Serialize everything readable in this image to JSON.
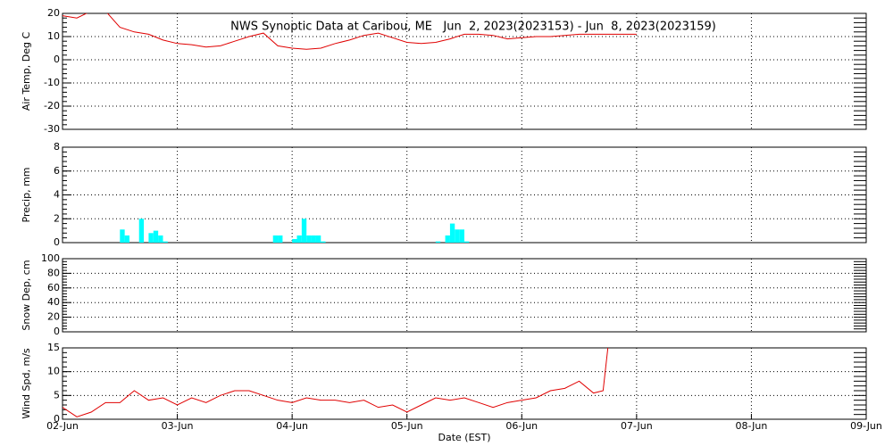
{
  "chart_data": [
    {
      "type": "line",
      "title": "NWS Synoptic Data at Caribou, ME   Jun  2, 2023(2023153) - Jun  8, 2023(2023159)",
      "ylabel": "Air Temp, Deg C",
      "xlim": [
        0,
        168
      ],
      "xticks": [
        0,
        24,
        48,
        72,
        96,
        120,
        144,
        168
      ],
      "ylim": [
        -30,
        20
      ],
      "yticks": [
        -30,
        -20,
        -10,
        0,
        10,
        20
      ],
      "grid": true,
      "series": [
        {
          "color": "#e00000",
          "x": [
            0,
            3,
            6,
            9,
            12,
            15,
            18,
            21,
            24,
            27,
            30,
            33,
            36,
            39,
            42,
            45,
            48,
            51,
            54,
            57,
            60,
            63,
            66,
            69,
            72,
            75,
            78,
            81,
            84,
            87,
            90,
            93,
            96,
            99,
            102,
            105,
            108,
            111,
            114,
            117,
            120
          ],
          "values": [
            19,
            18,
            21,
            21,
            14,
            12,
            11,
            8.5,
            7,
            6.5,
            5.5,
            6,
            8,
            10,
            11.5,
            6,
            5,
            4.5,
            5,
            7,
            8.5,
            10.5,
            11.5,
            9.5,
            7.5,
            7,
            7.5,
            9,
            11,
            11,
            10.5,
            9,
            9.5,
            10,
            10,
            10.5,
            11,
            11,
            11,
            11,
            11
          ]
        }
      ]
    },
    {
      "type": "bar",
      "ylabel": "Precip, mm",
      "xlim": [
        0,
        168
      ],
      "xticks": [
        0,
        24,
        48,
        72,
        96,
        120,
        144,
        168
      ],
      "ylim": [
        0,
        8
      ],
      "yticks": [
        0,
        2,
        4,
        6,
        8
      ],
      "grid": true,
      "series": [
        {
          "color": "#00ffff",
          "x": [
            12,
            13,
            16,
            18,
            19,
            20,
            21,
            44,
            45,
            48,
            49,
            50,
            51,
            52,
            53,
            54,
            78,
            80,
            81,
            82,
            83,
            84
          ],
          "values": [
            1.1,
            0.6,
            2.0,
            0.8,
            1.0,
            0.6,
            0.1,
            0.6,
            0.6,
            0.3,
            0.6,
            2.0,
            0.6,
            0.6,
            0.6,
            0.1,
            0.1,
            0.6,
            1.6,
            1.1,
            1.1,
            0.1
          ]
        }
      ]
    },
    {
      "type": "line",
      "ylabel": "Snow Dep, cm",
      "xlim": [
        0,
        168
      ],
      "xticks": [
        0,
        24,
        48,
        72,
        96,
        120,
        144,
        168
      ],
      "ylim": [
        0,
        100
      ],
      "yticks": [
        0,
        20,
        40,
        60,
        80,
        100
      ],
      "grid": true,
      "series": []
    },
    {
      "type": "line",
      "ylabel": "Wind Spd, m/s",
      "xlabel": "Date (EST)",
      "xlim": [
        0,
        168
      ],
      "xticks": [
        {
          "value": 0,
          "label": "02-Jun"
        },
        {
          "value": 24,
          "label": "03-Jun"
        },
        {
          "value": 48,
          "label": "04-Jun"
        },
        {
          "value": 72,
          "label": "05-Jun"
        },
        {
          "value": 96,
          "label": "06-Jun"
        },
        {
          "value": 120,
          "label": "07-Jun"
        },
        {
          "value": 144,
          "label": "08-Jun"
        },
        {
          "value": 168,
          "label": "09-Jun"
        }
      ],
      "ylim": [
        0,
        15
      ],
      "yticks": [
        0,
        5,
        10,
        15
      ],
      "grid": true,
      "series": [
        {
          "color": "#e00000",
          "x": [
            0,
            3,
            6,
            9,
            12,
            15,
            18,
            21,
            24,
            27,
            30,
            33,
            36,
            39,
            42,
            45,
            48,
            51,
            54,
            57,
            60,
            63,
            66,
            69,
            72,
            75,
            78,
            81,
            84,
            87,
            90,
            93,
            96,
            99,
            102,
            105,
            108,
            111,
            113,
            114
          ],
          "values": [
            2.5,
            0.5,
            1.5,
            3.5,
            3.5,
            6,
            4,
            4.5,
            3,
            4.5,
            3.5,
            5,
            6,
            6,
            5,
            4,
            3.5,
            4.5,
            4,
            4,
            3.5,
            4,
            2.5,
            3,
            1.5,
            3,
            4.5,
            4,
            4.5,
            3.5,
            2.5,
            3.5,
            4,
            4.5,
            6,
            6.5,
            8,
            5.5,
            6,
            15
          ]
        }
      ]
    }
  ]
}
